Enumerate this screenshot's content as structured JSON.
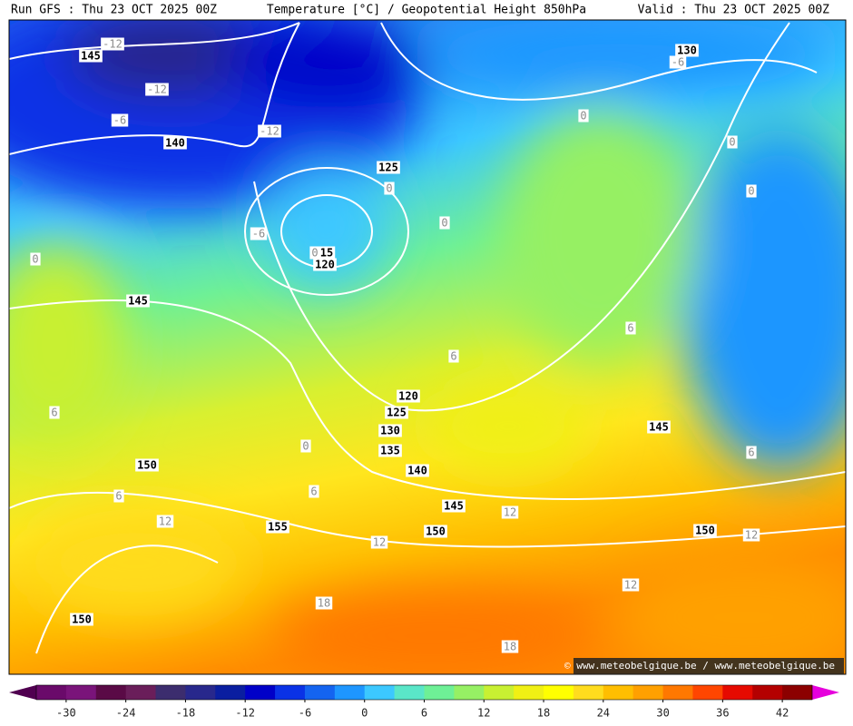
{
  "header": {
    "left": "Run GFS : Thu 23 OCT 2025 00Z",
    "center": "Temperature [°C] / Geopotential Height 850hPa",
    "right": "Valid : Thu 23 OCT 2025 00Z"
  },
  "map": {
    "height_labels": [
      "145",
      "140",
      "125",
      "15",
      "120",
      "145",
      "120",
      "125",
      "130",
      "135",
      "140",
      "145",
      "150",
      "155",
      "150",
      "150",
      "145",
      "150",
      "130"
    ],
    "temperature_labels": [
      "-12",
      "-12",
      "-6",
      "-12",
      "-6",
      "0",
      "0",
      "0",
      "0",
      "0",
      "0",
      "0",
      "-6",
      "6",
      "6",
      "6",
      "6",
      "6",
      "6",
      "0",
      "12",
      "12",
      "12",
      "12",
      "12",
      "18",
      "18"
    ],
    "watermark": "© www.meteobelgique.be / www.meteobelgique.be"
  },
  "colorbar": {
    "lim": [
      -33,
      45
    ],
    "ticks": [
      -30,
      -24,
      -18,
      -12,
      -6,
      0,
      6,
      12,
      18,
      24,
      30,
      36,
      42
    ],
    "colors": [
      "#6a0a6a",
      "#7a147a",
      "#5a0a46",
      "#6a1e5a",
      "#3c2d6e",
      "#28288c",
      "#0a1ea0",
      "#0000c8",
      "#0a32e6",
      "#1464f0",
      "#1e96ff",
      "#3cc8ff",
      "#5ae6c8",
      "#6ef096",
      "#96f064",
      "#c8f032",
      "#f0f014",
      "#ffff00",
      "#ffdc1e",
      "#ffbe00",
      "#ffa000",
      "#ff7800",
      "#ff4600",
      "#e60a00",
      "#b40000",
      "#8c0000"
    ],
    "under_color": "#500050",
    "over_color": "#e600dc"
  }
}
